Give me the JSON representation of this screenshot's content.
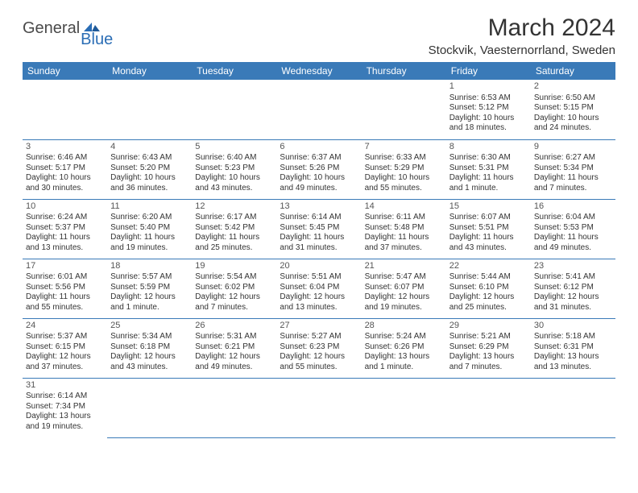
{
  "logo": {
    "text1": "General",
    "text2": "Blue"
  },
  "title": "March 2024",
  "location": "Stockvik, Vaesternorrland, Sweden",
  "colors": {
    "header_bg": "#3a7ab8",
    "header_fg": "#ffffff",
    "border": "#3a7ab8",
    "logo_gray": "#4a4a4a",
    "logo_blue": "#2a6db5"
  },
  "day_headers": [
    "Sunday",
    "Monday",
    "Tuesday",
    "Wednesday",
    "Thursday",
    "Friday",
    "Saturday"
  ],
  "weeks": [
    [
      null,
      null,
      null,
      null,
      null,
      {
        "n": "1",
        "sr": "Sunrise: 6:53 AM",
        "ss": "Sunset: 5:12 PM",
        "d1": "Daylight: 10 hours",
        "d2": "and 18 minutes."
      },
      {
        "n": "2",
        "sr": "Sunrise: 6:50 AM",
        "ss": "Sunset: 5:15 PM",
        "d1": "Daylight: 10 hours",
        "d2": "and 24 minutes."
      }
    ],
    [
      {
        "n": "3",
        "sr": "Sunrise: 6:46 AM",
        "ss": "Sunset: 5:17 PM",
        "d1": "Daylight: 10 hours",
        "d2": "and 30 minutes."
      },
      {
        "n": "4",
        "sr": "Sunrise: 6:43 AM",
        "ss": "Sunset: 5:20 PM",
        "d1": "Daylight: 10 hours",
        "d2": "and 36 minutes."
      },
      {
        "n": "5",
        "sr": "Sunrise: 6:40 AM",
        "ss": "Sunset: 5:23 PM",
        "d1": "Daylight: 10 hours",
        "d2": "and 43 minutes."
      },
      {
        "n": "6",
        "sr": "Sunrise: 6:37 AM",
        "ss": "Sunset: 5:26 PM",
        "d1": "Daylight: 10 hours",
        "d2": "and 49 minutes."
      },
      {
        "n": "7",
        "sr": "Sunrise: 6:33 AM",
        "ss": "Sunset: 5:29 PM",
        "d1": "Daylight: 10 hours",
        "d2": "and 55 minutes."
      },
      {
        "n": "8",
        "sr": "Sunrise: 6:30 AM",
        "ss": "Sunset: 5:31 PM",
        "d1": "Daylight: 11 hours",
        "d2": "and 1 minute."
      },
      {
        "n": "9",
        "sr": "Sunrise: 6:27 AM",
        "ss": "Sunset: 5:34 PM",
        "d1": "Daylight: 11 hours",
        "d2": "and 7 minutes."
      }
    ],
    [
      {
        "n": "10",
        "sr": "Sunrise: 6:24 AM",
        "ss": "Sunset: 5:37 PM",
        "d1": "Daylight: 11 hours",
        "d2": "and 13 minutes."
      },
      {
        "n": "11",
        "sr": "Sunrise: 6:20 AM",
        "ss": "Sunset: 5:40 PM",
        "d1": "Daylight: 11 hours",
        "d2": "and 19 minutes."
      },
      {
        "n": "12",
        "sr": "Sunrise: 6:17 AM",
        "ss": "Sunset: 5:42 PM",
        "d1": "Daylight: 11 hours",
        "d2": "and 25 minutes."
      },
      {
        "n": "13",
        "sr": "Sunrise: 6:14 AM",
        "ss": "Sunset: 5:45 PM",
        "d1": "Daylight: 11 hours",
        "d2": "and 31 minutes."
      },
      {
        "n": "14",
        "sr": "Sunrise: 6:11 AM",
        "ss": "Sunset: 5:48 PM",
        "d1": "Daylight: 11 hours",
        "d2": "and 37 minutes."
      },
      {
        "n": "15",
        "sr": "Sunrise: 6:07 AM",
        "ss": "Sunset: 5:51 PM",
        "d1": "Daylight: 11 hours",
        "d2": "and 43 minutes."
      },
      {
        "n": "16",
        "sr": "Sunrise: 6:04 AM",
        "ss": "Sunset: 5:53 PM",
        "d1": "Daylight: 11 hours",
        "d2": "and 49 minutes."
      }
    ],
    [
      {
        "n": "17",
        "sr": "Sunrise: 6:01 AM",
        "ss": "Sunset: 5:56 PM",
        "d1": "Daylight: 11 hours",
        "d2": "and 55 minutes."
      },
      {
        "n": "18",
        "sr": "Sunrise: 5:57 AM",
        "ss": "Sunset: 5:59 PM",
        "d1": "Daylight: 12 hours",
        "d2": "and 1 minute."
      },
      {
        "n": "19",
        "sr": "Sunrise: 5:54 AM",
        "ss": "Sunset: 6:02 PM",
        "d1": "Daylight: 12 hours",
        "d2": "and 7 minutes."
      },
      {
        "n": "20",
        "sr": "Sunrise: 5:51 AM",
        "ss": "Sunset: 6:04 PM",
        "d1": "Daylight: 12 hours",
        "d2": "and 13 minutes."
      },
      {
        "n": "21",
        "sr": "Sunrise: 5:47 AM",
        "ss": "Sunset: 6:07 PM",
        "d1": "Daylight: 12 hours",
        "d2": "and 19 minutes."
      },
      {
        "n": "22",
        "sr": "Sunrise: 5:44 AM",
        "ss": "Sunset: 6:10 PM",
        "d1": "Daylight: 12 hours",
        "d2": "and 25 minutes."
      },
      {
        "n": "23",
        "sr": "Sunrise: 5:41 AM",
        "ss": "Sunset: 6:12 PM",
        "d1": "Daylight: 12 hours",
        "d2": "and 31 minutes."
      }
    ],
    [
      {
        "n": "24",
        "sr": "Sunrise: 5:37 AM",
        "ss": "Sunset: 6:15 PM",
        "d1": "Daylight: 12 hours",
        "d2": "and 37 minutes."
      },
      {
        "n": "25",
        "sr": "Sunrise: 5:34 AM",
        "ss": "Sunset: 6:18 PM",
        "d1": "Daylight: 12 hours",
        "d2": "and 43 minutes."
      },
      {
        "n": "26",
        "sr": "Sunrise: 5:31 AM",
        "ss": "Sunset: 6:21 PM",
        "d1": "Daylight: 12 hours",
        "d2": "and 49 minutes."
      },
      {
        "n": "27",
        "sr": "Sunrise: 5:27 AM",
        "ss": "Sunset: 6:23 PM",
        "d1": "Daylight: 12 hours",
        "d2": "and 55 minutes."
      },
      {
        "n": "28",
        "sr": "Sunrise: 5:24 AM",
        "ss": "Sunset: 6:26 PM",
        "d1": "Daylight: 13 hours",
        "d2": "and 1 minute."
      },
      {
        "n": "29",
        "sr": "Sunrise: 5:21 AM",
        "ss": "Sunset: 6:29 PM",
        "d1": "Daylight: 13 hours",
        "d2": "and 7 minutes."
      },
      {
        "n": "30",
        "sr": "Sunrise: 5:18 AM",
        "ss": "Sunset: 6:31 PM",
        "d1": "Daylight: 13 hours",
        "d2": "and 13 minutes."
      }
    ],
    [
      {
        "n": "31",
        "sr": "Sunrise: 6:14 AM",
        "ss": "Sunset: 7:34 PM",
        "d1": "Daylight: 13 hours",
        "d2": "and 19 minutes."
      },
      null,
      null,
      null,
      null,
      null,
      null
    ]
  ]
}
